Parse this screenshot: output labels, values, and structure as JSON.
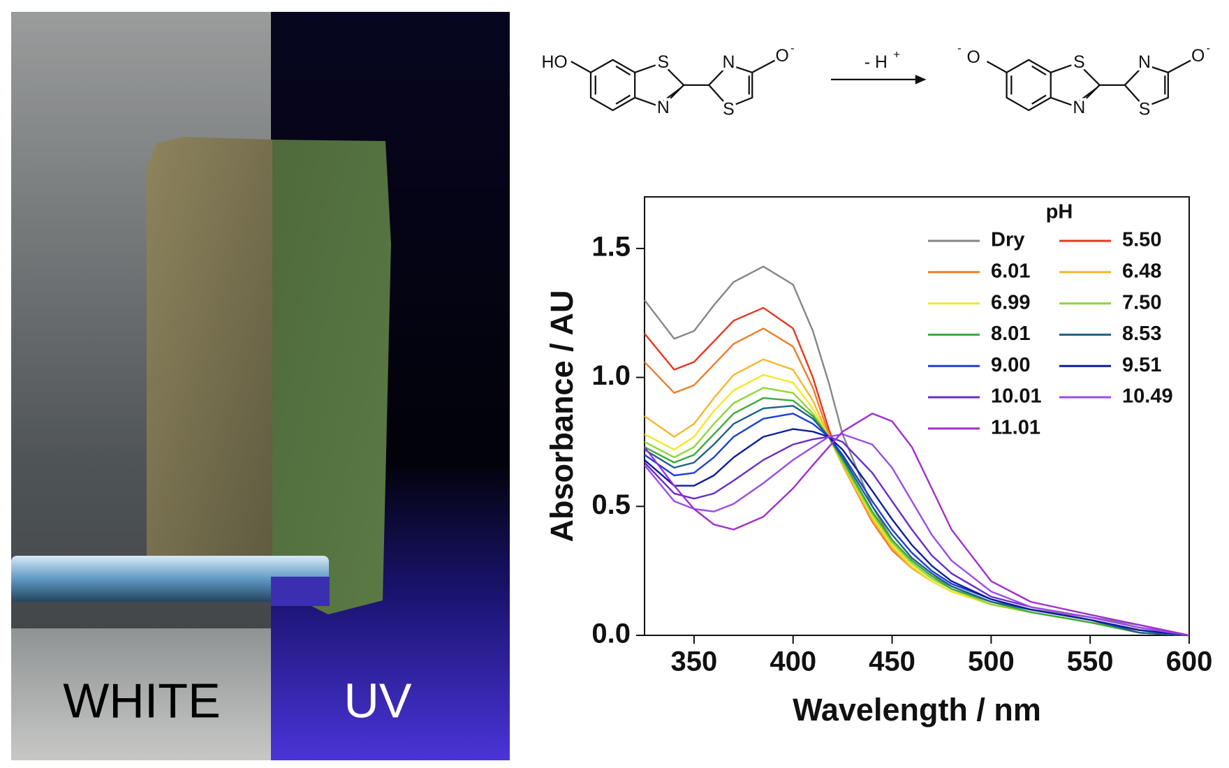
{
  "photo": {
    "left_label": "WHITE",
    "right_label": "UV"
  },
  "scheme": {
    "left": {
      "hydroxyl": "HO",
      "ring_s": "S",
      "ring_n": "N",
      "thiazole_n": "N",
      "thiazole_s": "S",
      "oxide": "O",
      "oxide_charge": "-"
    },
    "arrow": {
      "label": "- H",
      "label_charge": "+"
    },
    "right": {
      "oxide_charge": "-",
      "oxide": "O",
      "ring_s": "S",
      "ring_n": "N",
      "thiazole_n": "N",
      "thiazole_s": "S",
      "end_oxide": "O",
      "end_oxide_charge": "-"
    }
  },
  "chart_data": {
    "type": "line",
    "xlabel": "Wavelength / nm",
    "ylabel": "Absorbance / AU",
    "legend_title": "pH",
    "legend_position": "upper right",
    "xlim": [
      325,
      600
    ],
    "ylim": [
      0,
      1.7
    ],
    "xticks": [
      350,
      400,
      450,
      500,
      550,
      600
    ],
    "yticks": [
      {
        "value": 0,
        "label": "0.0"
      },
      {
        "value": 0.5,
        "label": "0.5"
      },
      {
        "value": 1,
        "label": "1.0"
      },
      {
        "value": 1.5,
        "label": "1.5"
      }
    ],
    "x": [
      325,
      340,
      350,
      360,
      370,
      385,
      400,
      410,
      418,
      425,
      440,
      450,
      460,
      470,
      480,
      500,
      520,
      550,
      575,
      600
    ],
    "series": [
      {
        "name": "Dry",
        "color": "#858585",
        "values": [
          1.3,
          1.15,
          1.18,
          1.28,
          1.37,
          1.43,
          1.36,
          1.18,
          0.98,
          0.78,
          0.5,
          0.37,
          0.29,
          0.23,
          0.19,
          0.13,
          0.1,
          0.07,
          0.04,
          0.0
        ]
      },
      {
        "name": "5.50",
        "color": "#e8361f",
        "values": [
          1.17,
          1.03,
          1.06,
          1.14,
          1.22,
          1.27,
          1.19,
          1.0,
          0.8,
          0.66,
          0.44,
          0.33,
          0.26,
          0.21,
          0.17,
          0.12,
          0.09,
          0.05,
          0.02,
          0.0
        ]
      },
      {
        "name": "6.01",
        "color": "#f07d2a",
        "values": [
          1.06,
          0.94,
          0.97,
          1.05,
          1.13,
          1.19,
          1.12,
          0.96,
          0.78,
          0.66,
          0.44,
          0.33,
          0.26,
          0.21,
          0.17,
          0.12,
          0.09,
          0.05,
          0.02,
          0.0
        ]
      },
      {
        "name": "6.48",
        "color": "#f5b82e",
        "values": [
          0.85,
          0.77,
          0.82,
          0.92,
          1.01,
          1.07,
          1.03,
          0.91,
          0.77,
          0.66,
          0.45,
          0.34,
          0.26,
          0.21,
          0.17,
          0.12,
          0.09,
          0.05,
          0.01,
          0.0
        ]
      },
      {
        "name": "6.99",
        "color": "#f2e82a",
        "values": [
          0.78,
          0.72,
          0.77,
          0.87,
          0.95,
          1.01,
          0.98,
          0.88,
          0.77,
          0.67,
          0.46,
          0.35,
          0.27,
          0.21,
          0.17,
          0.12,
          0.09,
          0.05,
          0.01,
          0.0
        ]
      },
      {
        "name": "7.50",
        "color": "#8ed63a",
        "values": [
          0.75,
          0.69,
          0.73,
          0.82,
          0.9,
          0.96,
          0.94,
          0.86,
          0.77,
          0.67,
          0.47,
          0.36,
          0.28,
          0.22,
          0.18,
          0.12,
          0.09,
          0.05,
          0.01,
          0.0
        ]
      },
      {
        "name": "8.01",
        "color": "#3caa3c",
        "values": [
          0.73,
          0.67,
          0.7,
          0.78,
          0.86,
          0.92,
          0.91,
          0.85,
          0.77,
          0.68,
          0.48,
          0.37,
          0.29,
          0.23,
          0.18,
          0.13,
          0.09,
          0.05,
          0.01,
          0.0
        ]
      },
      {
        "name": "8.53",
        "color": "#1f5f8a",
        "values": [
          0.72,
          0.65,
          0.67,
          0.74,
          0.82,
          0.88,
          0.89,
          0.84,
          0.77,
          0.69,
          0.5,
          0.39,
          0.3,
          0.24,
          0.19,
          0.13,
          0.1,
          0.06,
          0.01,
          0.0
        ]
      },
      {
        "name": "9.00",
        "color": "#1d3fd6",
        "values": [
          0.7,
          0.62,
          0.63,
          0.69,
          0.77,
          0.84,
          0.86,
          0.82,
          0.77,
          0.7,
          0.52,
          0.41,
          0.32,
          0.25,
          0.2,
          0.14,
          0.1,
          0.06,
          0.02,
          0.0
        ]
      },
      {
        "name": "9.51",
        "color": "#0a1e9a",
        "values": [
          0.68,
          0.58,
          0.58,
          0.62,
          0.69,
          0.77,
          0.8,
          0.79,
          0.77,
          0.72,
          0.56,
          0.45,
          0.35,
          0.27,
          0.21,
          0.14,
          0.1,
          0.06,
          0.02,
          0.0
        ]
      },
      {
        "name": "10.01",
        "color": "#6a2cc8",
        "values": [
          0.67,
          0.55,
          0.53,
          0.55,
          0.6,
          0.68,
          0.74,
          0.76,
          0.77,
          0.75,
          0.63,
          0.52,
          0.41,
          0.31,
          0.24,
          0.15,
          0.11,
          0.07,
          0.03,
          0.0
        ]
      },
      {
        "name": "10.49",
        "color": "#9a4ce8",
        "values": [
          0.66,
          0.52,
          0.49,
          0.48,
          0.51,
          0.59,
          0.68,
          0.73,
          0.77,
          0.78,
          0.74,
          0.65,
          0.52,
          0.39,
          0.29,
          0.17,
          0.11,
          0.07,
          0.03,
          0.0
        ]
      },
      {
        "name": "11.01",
        "color": "#a030d0",
        "values": [
          0.73,
          0.58,
          0.49,
          0.43,
          0.41,
          0.46,
          0.57,
          0.66,
          0.73,
          0.79,
          0.86,
          0.83,
          0.73,
          0.57,
          0.41,
          0.21,
          0.13,
          0.08,
          0.04,
          0.0
        ]
      }
    ]
  }
}
